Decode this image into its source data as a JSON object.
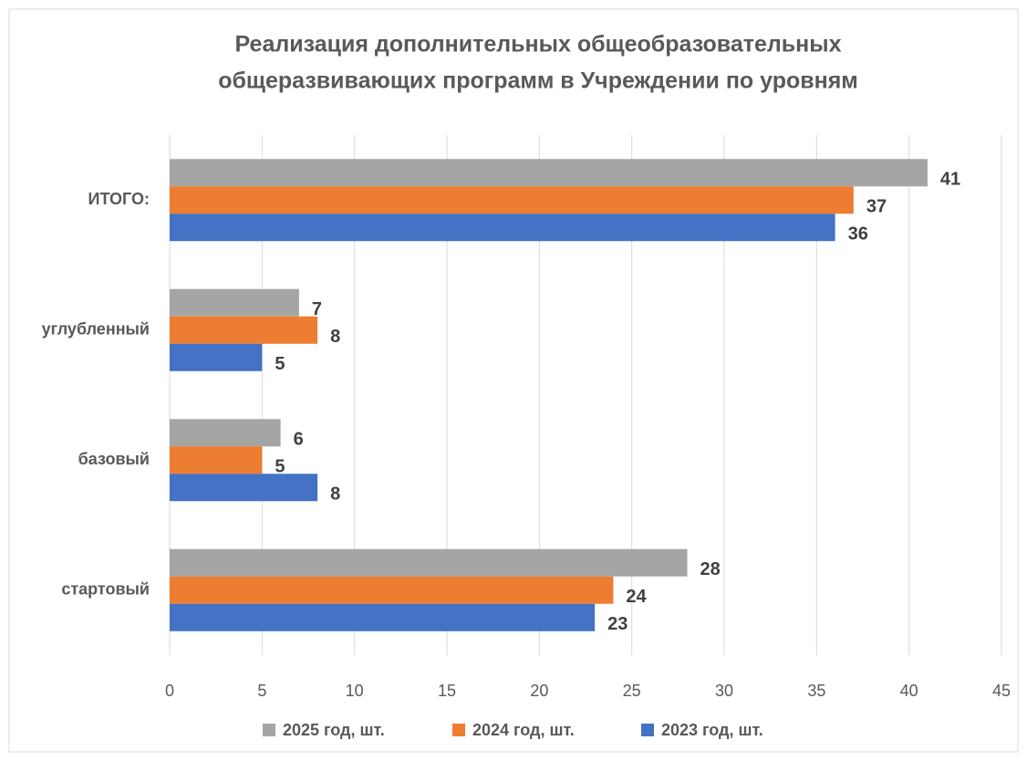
{
  "chart_data": {
    "type": "bar",
    "orientation": "horizontal",
    "title": [
      "Реализация дополнительных общеобразовательных",
      "общеразвивающих программ в Учреждении по уровням"
    ],
    "categories": [
      "ИТОГО:",
      "углубленный",
      "базовый",
      "стартовый"
    ],
    "series": [
      {
        "name": "2025 год, шт.",
        "color": "#a5a5a5",
        "values": [
          41,
          7,
          6,
          28
        ]
      },
      {
        "name": "2024 год, шт.",
        "color": "#ed7d31",
        "values": [
          37,
          8,
          5,
          24
        ]
      },
      {
        "name": "2023 год, шт.",
        "color": "#4472c4",
        "values": [
          36,
          5,
          8,
          23
        ]
      }
    ],
    "xlim": [
      0,
      45
    ],
    "xticks": [
      0,
      5,
      10,
      15,
      20,
      25,
      30,
      35,
      40,
      45
    ],
    "grid": true,
    "legend": "bottom"
  }
}
